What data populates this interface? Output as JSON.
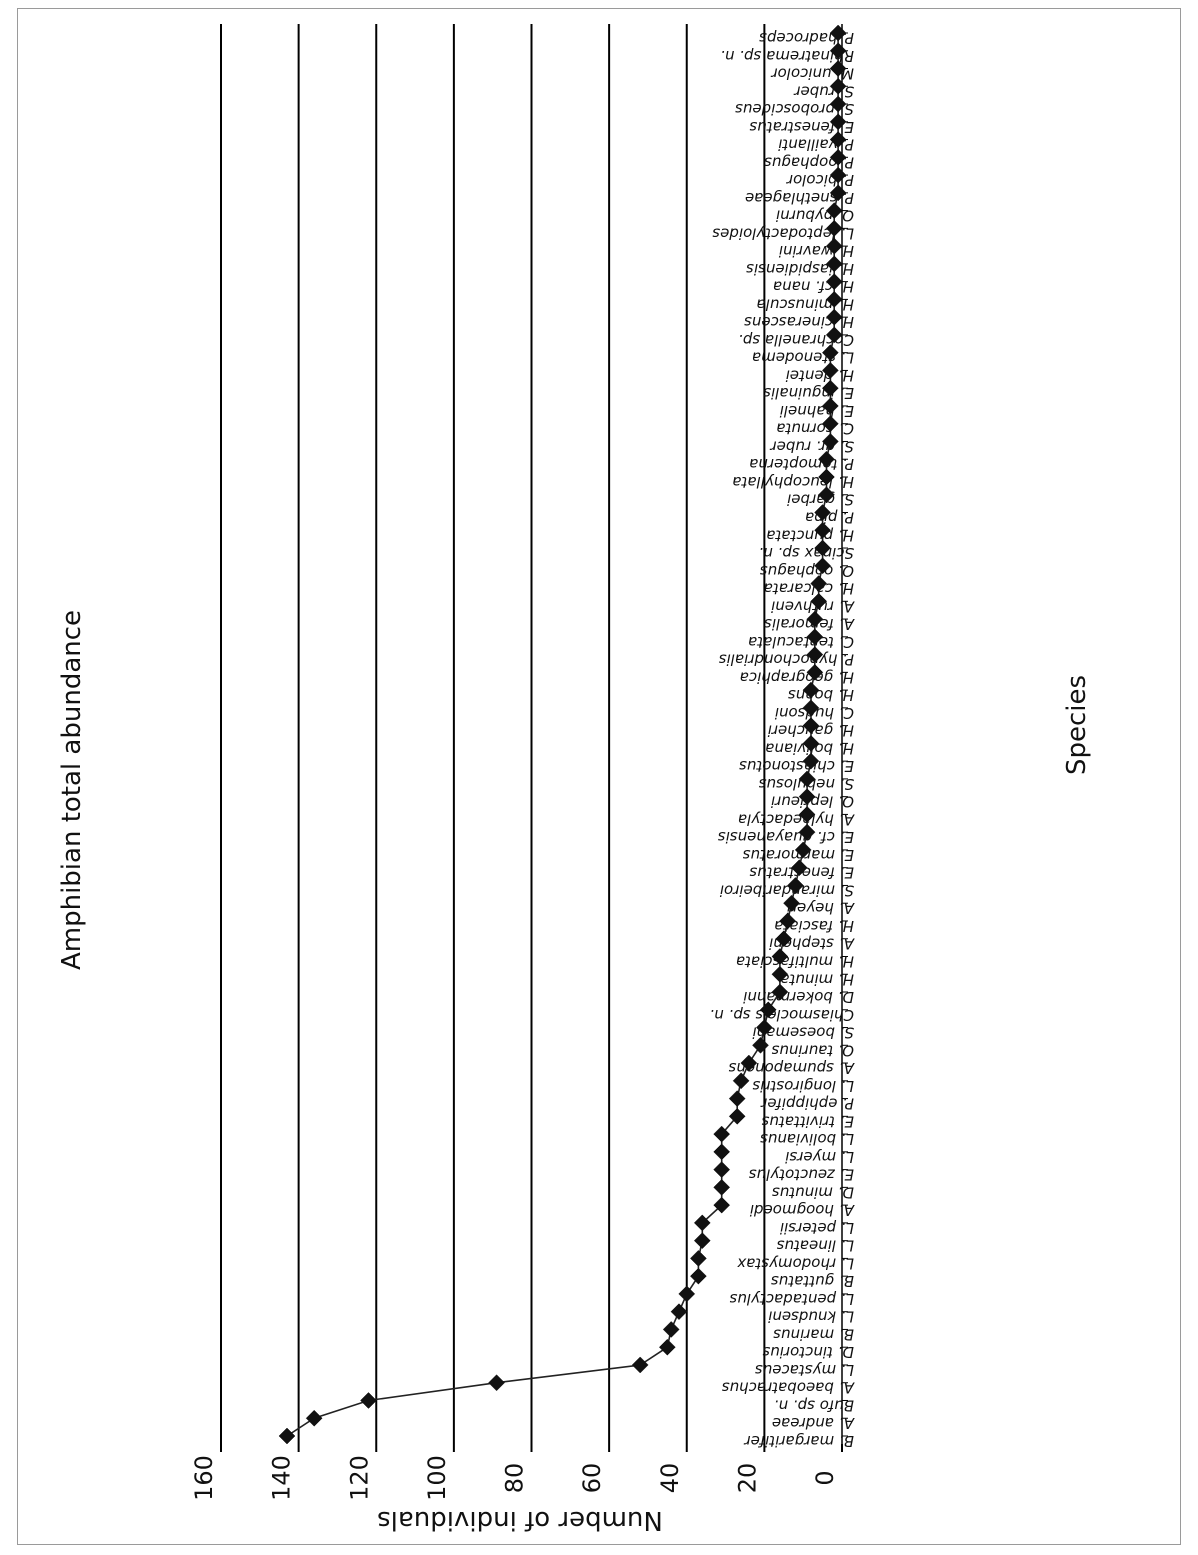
{
  "chart_data": {
    "type": "line",
    "title": "Amphibian total abundance",
    "xlabel": "Species",
    "ylabel": "Number of individuals",
    "ylim": [
      0,
      160
    ],
    "yticks": [
      0,
      20,
      40,
      60,
      80,
      100,
      120,
      140,
      160
    ],
    "grid": true,
    "orientation": "rotated-90",
    "marker": "diamond",
    "categories": [
      "B. margaritifer",
      "A. andreae",
      "Bufo sp. n.",
      "A. baeobatrachus",
      "L. mystaceus",
      "D. tinctorius",
      "B. marinus",
      "L. knudseni",
      "L. pentadactylus",
      "B. guttatus",
      "L. rhodomystax",
      "L. lineatus",
      "L. petersii",
      "A. hoogmoedi",
      "D. minutus",
      "E. zeuctotylus",
      "L. myersi",
      "L. bolivianus",
      "E. trivittatus",
      "P. ephippifer",
      "L. longirostris",
      "A. spumaponens",
      "O. taurinus",
      "S. boesemani",
      "Chiasmocleis sp. n.",
      "D. bokermanni",
      "H. minuta",
      "H. multifasciata",
      "A. stepheni",
      "H. fasciata",
      "A. heyeri",
      "S. mirandaribeiroi",
      "E. fenestratus",
      "E. marmoratus",
      "E. cf. guayanensis",
      "A. hylaedactyla",
      "O. leprieuri",
      "S. nebulosus",
      "E. chiastonotus",
      "H. boliviana",
      "H. gaucheri",
      "C. hudsoni",
      "H. boans",
      "H. geographica",
      "P. hypochondrialis",
      "C. tentaculata",
      "A. femoralis",
      "A. ruthveni",
      "H. calcarata",
      "O. oophagus",
      "Scinax sp. n.",
      "H. punctata",
      "P. pipa",
      "S. garbei",
      "H. leucophyllata",
      "P. tomopterna",
      "S. gr. ruber",
      "C. cornuta",
      "E. hahneli",
      "E. inguinalis",
      "H. dentei",
      "L. stenodema",
      "Cochranella sp.",
      "H. cinerascens",
      "H. minuscula",
      "H. cf. nana",
      "H. iaspidiensis",
      "H. wavrini",
      "L. leptodactyloides",
      "O. pyburni",
      "P. snethlageae",
      "P. bicolor",
      "P. oophagus",
      "P. vaillanti",
      "E. fenestratus",
      "S. proboscideus",
      "S. ruber",
      "M. unicolor",
      "Rhinatrema sp. n.",
      "P. hadroceps"
    ],
    "values": [
      143,
      136,
      122,
      89,
      52,
      45,
      44,
      42,
      40,
      37,
      37,
      36,
      36,
      31,
      31,
      31,
      31,
      31,
      27,
      27,
      26,
      24,
      21,
      20,
      19,
      16,
      16,
      16,
      15,
      14,
      13,
      12,
      11,
      10,
      9,
      9,
      9,
      9,
      8,
      8,
      8,
      8,
      8,
      7,
      7,
      7,
      7,
      6,
      6,
      5,
      5,
      5,
      5,
      4,
      4,
      4,
      3,
      3,
      3,
      3,
      3,
      3,
      2,
      2,
      2,
      2,
      2,
      2,
      2,
      2,
      1,
      1,
      1,
      1,
      1,
      1,
      1,
      1,
      1,
      1
    ]
  }
}
